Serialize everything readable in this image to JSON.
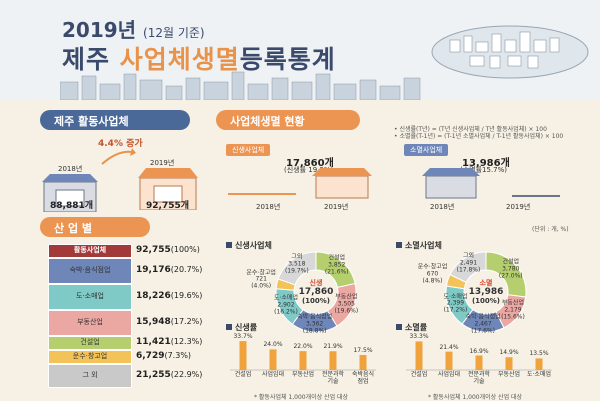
{
  "header": {
    "year": "2019년",
    "year_note": "(12월 기준)",
    "title_prefix": "제주 ",
    "title_highlight": "사업체생멸",
    "title_suffix": "등록통계"
  },
  "active": {
    "section_label": "제주 활동사업체",
    "growth": "4.4% 증가",
    "year_2018": "2018년",
    "value_2018": "88,881개",
    "year_2019": "2019년",
    "value_2019": "92,755개"
  },
  "status": {
    "section_label": "사업체생멸 현황",
    "note_birth": "• 신생률(T년) = (T년 신생사업체 / T년 활동사업체) × 100",
    "note_death": "• 소멸률(T-1년) = (T-1년 소멸사업체 / T-1년 활동사업체) × 100",
    "birth_label": "신생사업체",
    "birth_value": "17,860개",
    "birth_rate": "(신생률 19.3%)",
    "death_label": "소멸사업체",
    "death_value": "13,986개",
    "death_rate": "(소멸률15.7%)",
    "year_2018": "2018년",
    "year_2019": "2019년"
  },
  "category": {
    "section_label": "산 업 별",
    "unit": "(단위 : 개, %)",
    "header_label": "활동사업체",
    "header_value": "92,755",
    "header_pct": "(100%)",
    "rows": [
      {
        "label": "숙박·음식점업",
        "value": "19,176",
        "pct": "(20.7%)",
        "color": "#6f86b8"
      },
      {
        "label": "도·소매업",
        "value": "18,226",
        "pct": "(19.6%)",
        "color": "#7fc9c6"
      },
      {
        "label": "부동산업",
        "value": "15,948",
        "pct": "(17.2%)",
        "color": "#eba7a2"
      },
      {
        "label": "건설업",
        "value": "11,421",
        "pct": "(12.3%)",
        "color": "#b6cf6e"
      },
      {
        "label": "운수·창고업",
        "value": "6,729",
        "pct": "(7.3%)",
        "color": "#f3c35a"
      },
      {
        "label": "그 외",
        "value": "21,255",
        "pct": "(22.9%)",
        "color": "#c9c9c9"
      }
    ]
  },
  "birth_panel": {
    "pie_title": "신생사업체",
    "center_label": "신생",
    "center_value": "17,860",
    "center_pct": "(100%)",
    "slices": [
      {
        "name": "건설업",
        "value": "3,852",
        "pct": "(21.6%)",
        "share": 21.6,
        "color": "#b6cf6e"
      },
      {
        "name": "부동산업",
        "value": "3,505",
        "pct": "(19.6%)",
        "share": 19.6,
        "color": "#eba7a2"
      },
      {
        "name": "숙박·음식점업",
        "value": "3,362",
        "pct": "(18.8%)",
        "share": 18.8,
        "color": "#6f86b8"
      },
      {
        "name": "도·소매업",
        "value": "2,902",
        "pct": "(16.2%)",
        "share": 16.2,
        "color": "#7fc9c6"
      },
      {
        "name": "운수·창고업",
        "value": "721",
        "pct": "(4.0%)",
        "share": 4.0,
        "color": "#f3c35a"
      },
      {
        "name": "그외",
        "value": "3,518",
        "pct": "(19.7%)",
        "share": 19.7,
        "color": "#d8d8d8"
      }
    ],
    "bar_title": "신생률",
    "bar_note": "* 활동사업체 1,000개이상 산업 대상"
  },
  "death_panel": {
    "pie_title": "소멸사업체",
    "center_label": "소멸",
    "center_value": "13,986",
    "center_pct": "(100%)",
    "slices": [
      {
        "name": "건설업",
        "value": "3,780",
        "pct": "(27.0%)",
        "share": 27.0,
        "color": "#b6cf6e"
      },
      {
        "name": "부동산업",
        "value": "2,179",
        "pct": "(15.6%)",
        "share": 15.6,
        "color": "#eba7a2"
      },
      {
        "name": "숙박·음식점업",
        "value": "2,467",
        "pct": "(17.6%)",
        "share": 17.6,
        "color": "#6f86b8"
      },
      {
        "name": "도·소매업",
        "value": "2,399",
        "pct": "(17.2%)",
        "share": 17.2,
        "color": "#7fc9c6"
      },
      {
        "name": "운수·창고업",
        "value": "670",
        "pct": "(4.8%)",
        "share": 4.8,
        "color": "#f3c35a"
      },
      {
        "name": "그외",
        "value": "2,491",
        "pct": "(17.8%)",
        "share": 17.8,
        "color": "#d8d8d8"
      }
    ],
    "bar_title": "소멸률",
    "bar_note": "* 활동사업체 1,000개이상 산업 대상"
  },
  "chart_data": [
    {
      "type": "bar",
      "title": "신생률",
      "categories": [
        "건설업",
        "사업임대",
        "부동산업",
        "전문과학기술",
        "숙박음식점업"
      ],
      "values": [
        33.7,
        24.0,
        22.0,
        21.9,
        17.5
      ],
      "unit": "%",
      "color": "#f0a33c"
    },
    {
      "type": "bar",
      "title": "소멸률",
      "categories": [
        "건설업",
        "사업임대",
        "전문과학기술",
        "부동산업",
        "도·소매업"
      ],
      "values": [
        33.3,
        21.4,
        16.9,
        14.9,
        13.5
      ],
      "unit": "%",
      "color": "#f0a33c"
    },
    {
      "type": "pie",
      "title": "신생사업체",
      "labels": [
        "건설업",
        "부동산업",
        "숙박·음식점업",
        "도·소매업",
        "운수·창고업",
        "그외"
      ],
      "values": [
        3852,
        3505,
        3362,
        2902,
        721,
        3518
      ]
    },
    {
      "type": "pie",
      "title": "소멸사업체",
      "labels": [
        "건설업",
        "부동산업",
        "숙박·음식점업",
        "도·소매업",
        "운수·창고업",
        "그외"
      ],
      "values": [
        3780,
        2179,
        2467,
        2399,
        670,
        2491
      ]
    }
  ]
}
